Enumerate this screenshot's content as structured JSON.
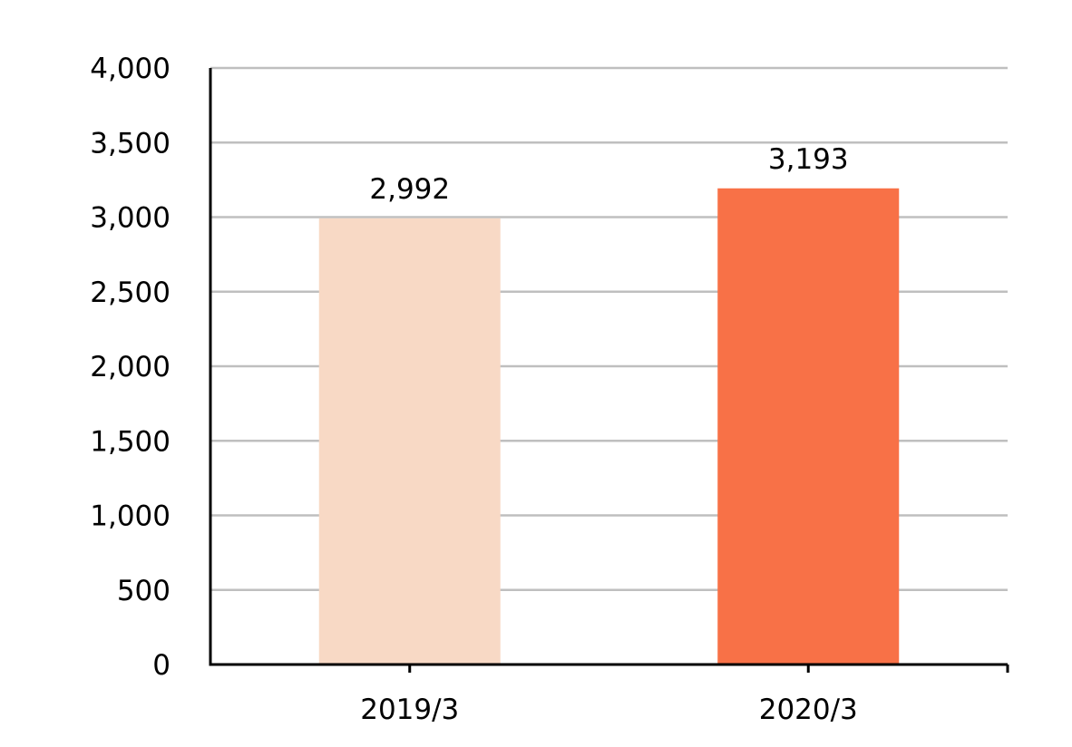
{
  "chart_data": {
    "type": "bar",
    "categories": [
      "2019/3",
      "2020/3"
    ],
    "values": [
      2992,
      3193
    ],
    "data_labels": [
      "2,992",
      "3,193"
    ],
    "bar_colors": [
      "#f8d9c5",
      "#f87147"
    ],
    "ylim": [
      0,
      4000
    ],
    "y_ticks": [
      0,
      500,
      1000,
      1500,
      2000,
      2500,
      3000,
      3500,
      4000
    ],
    "y_tick_labels": [
      "0",
      "500",
      "1,000",
      "1,500",
      "2,000",
      "2,500",
      "3,000",
      "3,500",
      "4,000"
    ],
    "grid": true,
    "legend": "none",
    "title": "",
    "xlabel": "",
    "ylabel": ""
  }
}
